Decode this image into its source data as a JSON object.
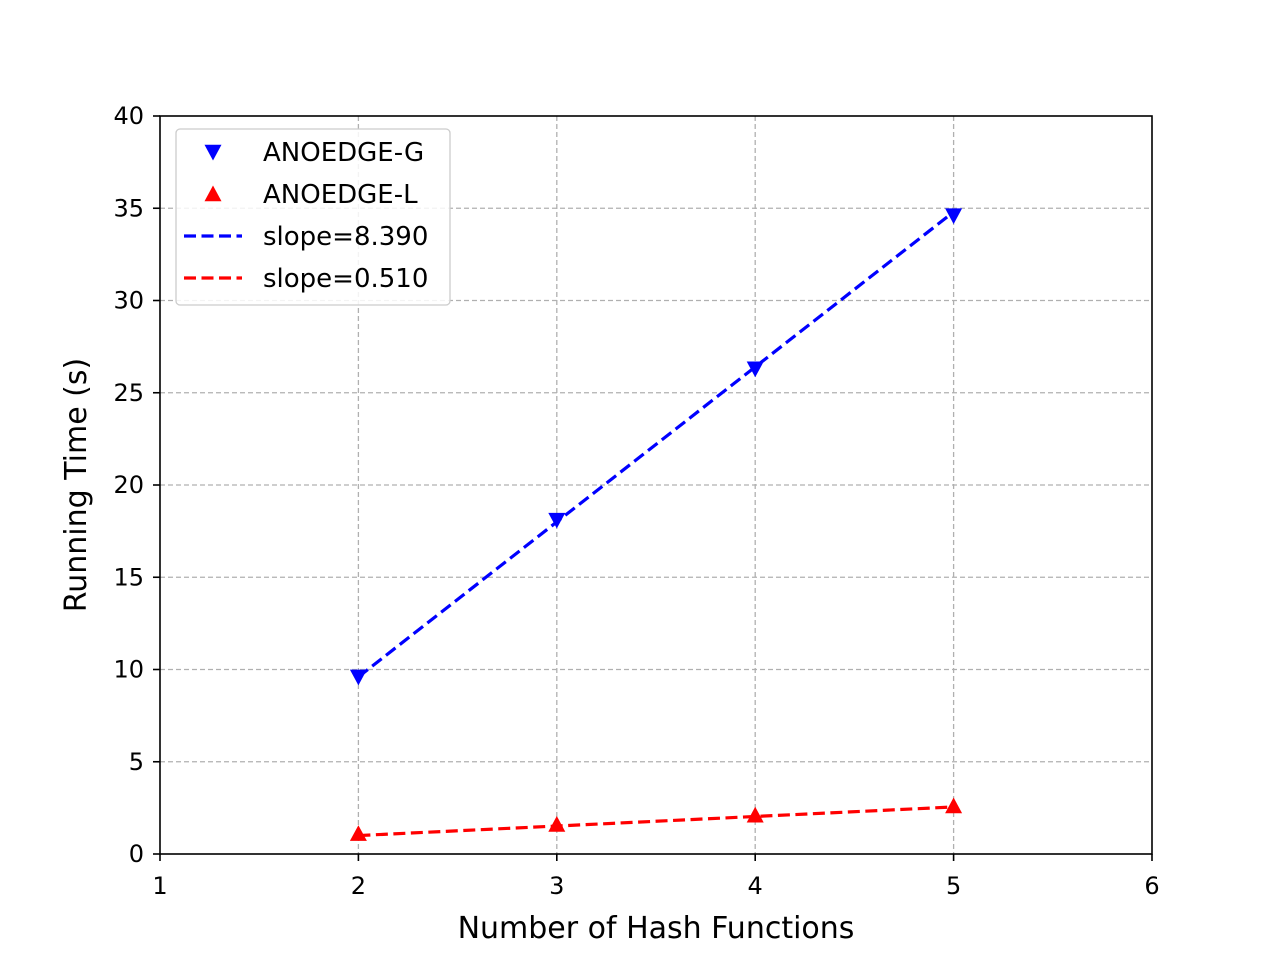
{
  "chart_data": {
    "type": "line",
    "title": "",
    "xlabel": "Number of Hash Functions",
    "ylabel": "Running Time (s)",
    "xlim": [
      1,
      6
    ],
    "ylim": [
      0,
      40
    ],
    "xticks": [
      "1",
      "2",
      "3",
      "4",
      "5",
      "6"
    ],
    "yticks": [
      "0",
      "5",
      "10",
      "15",
      "20",
      "25",
      "30",
      "35",
      "40"
    ],
    "grid": true,
    "legend_position": "top-left",
    "series": [
      {
        "name": "ANOEDGE-G",
        "kind": "markers",
        "marker": "triangle-down",
        "color": "#0000ff",
        "x": [
          2,
          3,
          4,
          5
        ],
        "y": [
          9.6,
          18.1,
          26.3,
          34.6
        ]
      },
      {
        "name": "ANOEDGE-L",
        "kind": "markers",
        "marker": "triangle-up",
        "color": "#ff0000",
        "x": [
          2,
          3,
          4,
          5
        ],
        "y": [
          1.1,
          1.6,
          2.1,
          2.6
        ]
      },
      {
        "name": "slope=8.390",
        "kind": "dashed-line",
        "color": "#0000ff",
        "x": [
          2,
          5
        ],
        "y": [
          9.6,
          34.8
        ]
      },
      {
        "name": "slope=0.510",
        "kind": "dashed-line",
        "color": "#ff0000",
        "x": [
          2,
          5
        ],
        "y": [
          1.0,
          2.55
        ]
      }
    ]
  }
}
